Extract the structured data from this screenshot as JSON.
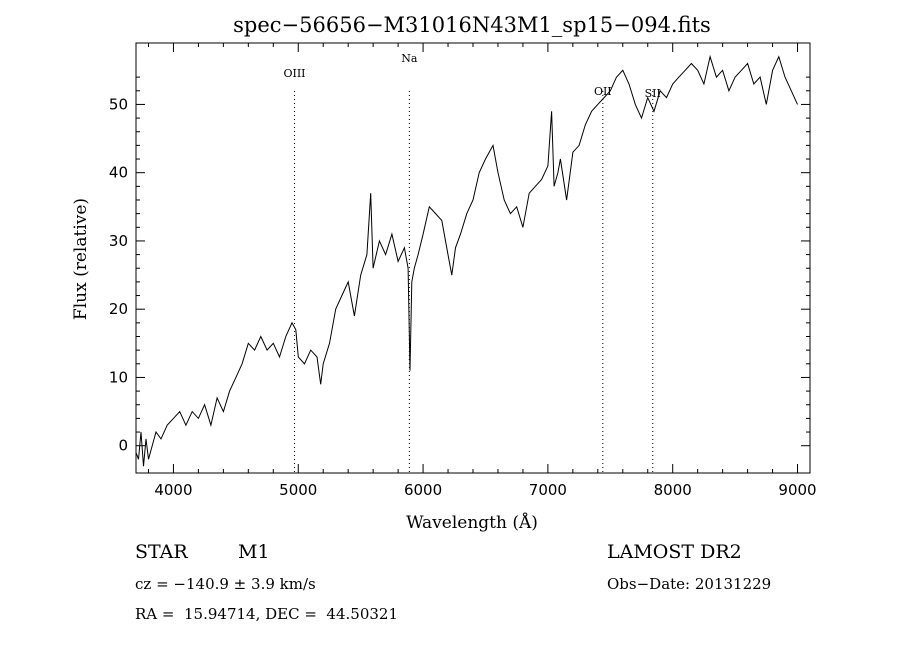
{
  "chart_data": {
    "type": "line",
    "title": "spec−56656−M31016N43M1_sp15−094.fits",
    "xlabel": "Wavelength (Å)",
    "ylabel": "Flux (relative)",
    "xlim": [
      3700,
      9100
    ],
    "ylim": [
      -4,
      59
    ],
    "xticks": [
      4000,
      5000,
      6000,
      7000,
      8000,
      9000
    ],
    "yticks": [
      0,
      10,
      20,
      30,
      40,
      50
    ],
    "grid": false,
    "series": [
      {
        "x": [
          3700,
          3720,
          3740,
          3760,
          3780,
          3800,
          3830,
          3860,
          3900,
          3950,
          4000,
          4050,
          4100,
          4150,
          4200,
          4250,
          4300,
          4350,
          4400,
          4450,
          4500,
          4550,
          4600,
          4650,
          4700,
          4750,
          4800,
          4850,
          4900,
          4950,
          4980,
          5000,
          5050,
          5100,
          5150,
          5180,
          5200,
          5250,
          5300,
          5350,
          5400,
          5450,
          5500,
          5550,
          5580,
          5600,
          5650,
          5700,
          5750,
          5800,
          5850,
          5880,
          5895,
          5910,
          5930,
          5960,
          6000,
          6050,
          6100,
          6150,
          6200,
          6230,
          6260,
          6300,
          6350,
          6400,
          6450,
          6500,
          6530,
          6560,
          6600,
          6650,
          6700,
          6750,
          6800,
          6850,
          6900,
          6950,
          7000,
          7030,
          7050,
          7080,
          7100,
          7150,
          7200,
          7250,
          7300,
          7350,
          7400,
          7450,
          7500,
          7550,
          7600,
          7650,
          7700,
          7750,
          7800,
          7850,
          7900,
          7950,
          8000,
          8050,
          8100,
          8150,
          8200,
          8250,
          8300,
          8350,
          8400,
          8450,
          8500,
          8550,
          8600,
          8650,
          8700,
          8750,
          8800,
          8850,
          8900,
          8950,
          9000
        ],
        "y": [
          -1,
          -2,
          2,
          -3,
          1,
          -2,
          0,
          2,
          1,
          3,
          4,
          5,
          3,
          5,
          4,
          6,
          3,
          7,
          5,
          8,
          10,
          12,
          15,
          14,
          16,
          14,
          15,
          13,
          16,
          18,
          17,
          13,
          12,
          14,
          13,
          9,
          12,
          15,
          20,
          22,
          24,
          19,
          25,
          28,
          37,
          26,
          30,
          28,
          31,
          27,
          29,
          26,
          11,
          24,
          26,
          28,
          31,
          35,
          34,
          33,
          28,
          25,
          29,
          31,
          34,
          36,
          40,
          42,
          43,
          44,
          40,
          36,
          34,
          35,
          32,
          37,
          38,
          39,
          41,
          49,
          38,
          40,
          42,
          36,
          43,
          44,
          47,
          49,
          50,
          51,
          52,
          54,
          55,
          53,
          50,
          48,
          51,
          49,
          52,
          51,
          53,
          54,
          55,
          56,
          55,
          53,
          57,
          54,
          55,
          52,
          54,
          55,
          56,
          53,
          54,
          50,
          55,
          57,
          54,
          52,
          50
        ]
      }
    ],
    "annotations": [
      {
        "label": "OIII",
        "x": 4970
      },
      {
        "label": "Na",
        "x": 5890
      },
      {
        "label": "OII",
        "x": 7440
      },
      {
        "label": "SII",
        "x": 7840
      }
    ]
  },
  "info": {
    "object_class": "STAR",
    "subclass": "M1",
    "survey": "LAMOST DR2",
    "redshift": "cz = −140.9 ± 3.9 km/s",
    "obs_date": "Obs−Date: 20131229",
    "coords": "RA =  15.94714, DEC =  44.50321"
  }
}
